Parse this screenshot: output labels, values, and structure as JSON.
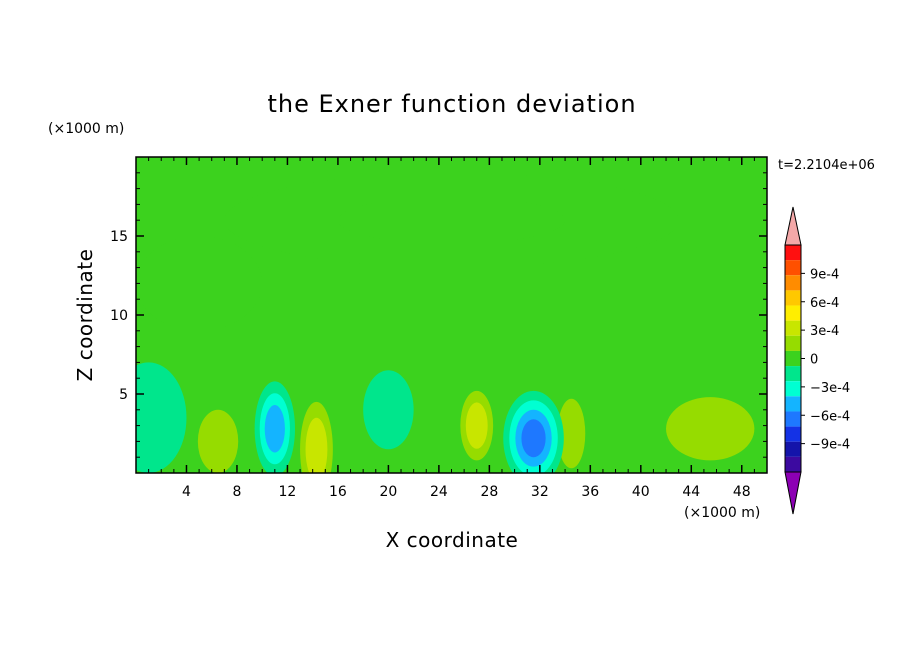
{
  "chart_data": {
    "type": "heatmap",
    "title": "the Exner function deviation",
    "xlabel": "X coordinate",
    "ylabel": "Z coordinate",
    "x_unit": "(×1000 m)",
    "y_unit": "(×1000 m)",
    "time_label": "t=2.2104e+06",
    "xlim": [
      0,
      50
    ],
    "ylim": [
      0,
      20
    ],
    "x_ticks": [
      "4",
      "8",
      "12",
      "16",
      "20",
      "24",
      "28",
      "32",
      "36",
      "40",
      "44",
      "48"
    ],
    "x_tick_values": [
      4,
      8,
      12,
      16,
      20,
      24,
      28,
      32,
      36,
      40,
      44,
      48
    ],
    "y_ticks": [
      "5",
      "10",
      "15"
    ],
    "y_tick_values": [
      5,
      10,
      15
    ],
    "colorbar": {
      "min": -0.0012,
      "max": 0.0012,
      "ticks": [
        "9e-4",
        "6e-4",
        "3e-4",
        "0",
        "−3e-4",
        "−6e-4",
        "−9e-4"
      ],
      "tick_values": [
        0.0009,
        0.0006,
        0.0003,
        0,
        -0.0003,
        -0.0006,
        -0.0009
      ],
      "levels_top_to_bottom": [
        {
          "color": "#f0f0a0",
          "note": "above"
        },
        {
          "color": "#ff1010"
        },
        {
          "color": "#ff5000"
        },
        {
          "color": "#ff8c00"
        },
        {
          "color": "#ffc800"
        },
        {
          "color": "#ffee00"
        },
        {
          "color": "#c8e600"
        },
        {
          "color": "#96dc00"
        },
        {
          "color": "#3cd21e"
        },
        {
          "color": "#00e68c"
        },
        {
          "color": "#00ffd2"
        },
        {
          "color": "#14b4ff"
        },
        {
          "color": "#1e78ff"
        },
        {
          "color": "#1432e6"
        },
        {
          "color": "#1414aa"
        },
        {
          "color": "#3c0aa0"
        },
        {
          "color": "#8c00b4",
          "note": "below"
        }
      ],
      "upper_arrow_color": "#f4a8a8",
      "lower_arrow_color": "#8c00b4"
    },
    "background_value": 0,
    "features": [
      {
        "x": 11,
        "z": 2.8,
        "rx": 1.6,
        "rz": 3.0,
        "value": -0.00045
      },
      {
        "x": 31.5,
        "z": 2.2,
        "rx": 2.4,
        "rz": 3.0,
        "value": -0.0006
      },
      {
        "x": 1,
        "z": 3.5,
        "rx": 3.0,
        "rz": 3.5,
        "value": -0.00018
      },
      {
        "x": 20,
        "z": 4.0,
        "rx": 2.0,
        "rz": 2.5,
        "value": -0.00016
      },
      {
        "x": 14.3,
        "z": 1.5,
        "rx": 1.3,
        "rz": 3.0,
        "value": 0.00032
      },
      {
        "x": 6.5,
        "z": 2.0,
        "rx": 1.6,
        "rz": 2.0,
        "value": 0.0002
      },
      {
        "x": 27,
        "z": 3.0,
        "rx": 1.3,
        "rz": 2.2,
        "value": 0.00025
      },
      {
        "x": 34.5,
        "z": 2.5,
        "rx": 1.1,
        "rz": 2.2,
        "value": 0.0002
      },
      {
        "x": 45.5,
        "z": 2.8,
        "rx": 3.5,
        "rz": 2.0,
        "value": 0.00012
      },
      {
        "x": 25,
        "z": 16,
        "rx": 18.0,
        "rz": 3.0,
        "value": 8e-05
      },
      {
        "x": 5,
        "z": 12,
        "rx": 5.0,
        "rz": 3.0,
        "value": 6e-05
      }
    ]
  }
}
